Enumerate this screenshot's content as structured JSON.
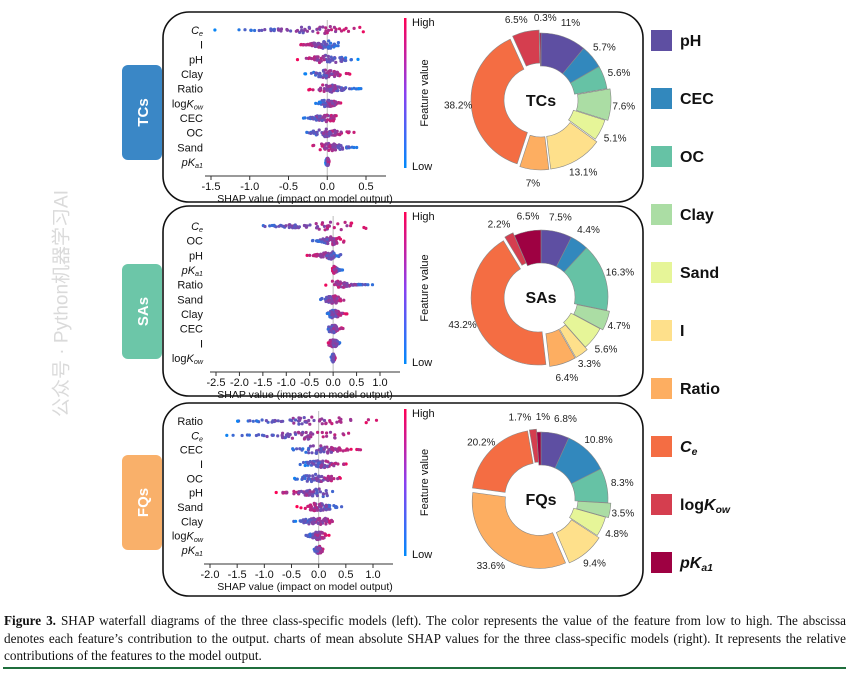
{
  "caption": {
    "label": "Figure 3.",
    "text": " SHAP waterfall diagrams of the three class-specific models (left). The color represents the value of the feature from low to high. The abscissa denotes each feature’s contribution to the output. charts of mean absolute SHAP values for the three class-specific models (right). It represents the relative contributions of the features to the model output."
  },
  "watermark": "公众号 · Python机器学习AI",
  "features": {
    "pH": {
      "pre": "pH",
      "ital": "",
      "sub": ""
    },
    "CEC": {
      "pre": "CEC",
      "ital": "",
      "sub": ""
    },
    "OC": {
      "pre": "OC",
      "ital": "",
      "sub": ""
    },
    "Clay": {
      "pre": "Clay",
      "ital": "",
      "sub": ""
    },
    "Sand": {
      "pre": "Sand",
      "ital": "",
      "sub": ""
    },
    "I": {
      "pre": "I",
      "ital": "",
      "sub": ""
    },
    "Ratio": {
      "pre": "Ratio",
      "ital": "",
      "sub": ""
    },
    "Ce": {
      "pre": "",
      "ital": "C",
      "sub": "e"
    },
    "logKow": {
      "pre": "log",
      "ital": "K",
      "sub": "ow"
    },
    "pKa1": {
      "pre": "",
      "ital": "pK",
      "sub": "a1"
    }
  },
  "legend": [
    {
      "key": "pH",
      "color": "#5e4fa2"
    },
    {
      "key": "CEC",
      "color": "#3288bd"
    },
    {
      "key": "OC",
      "color": "#66c2a5"
    },
    {
      "key": "Clay",
      "color": "#abdda4"
    },
    {
      "key": "Sand",
      "color": "#e6f598"
    },
    {
      "key": "I",
      "color": "#fee08b"
    },
    {
      "key": "Ratio",
      "color": "#fdae61"
    },
    {
      "key": "Ce",
      "color": "#f46d43"
    },
    {
      "key": "logKow",
      "color": "#d53e4f"
    },
    {
      "key": "pKa1",
      "color": "#9e0142"
    }
  ],
  "colorbar": {
    "high_label": "High",
    "low_label": "Low",
    "title": "Feature value",
    "low_color": "#008afb",
    "high_color": "#ff0052"
  },
  "chart_data": [
    {
      "type": "scatter",
      "subtype": "shap-beeswarm",
      "group": "TCs",
      "group_color": "#3a87c6",
      "xlabel": "SHAP value (impact on model output)",
      "xticks": [
        -1.5,
        -1.0,
        -0.5,
        0.0,
        0.5
      ],
      "xtick_labels": [
        "-1.5",
        "-1.0",
        "-0.5",
        "0.0",
        "0.5"
      ],
      "xlim": [
        -1.6,
        0.85
      ],
      "rows": [
        {
          "feature": "Ce",
          "range": [
            -1.45,
            0.75
          ],
          "high_value_direction": "positive"
        },
        {
          "feature": "I",
          "range": [
            -0.4,
            0.2
          ],
          "high_value_direction": "negative"
        },
        {
          "feature": "pH",
          "range": [
            -0.4,
            0.4
          ],
          "high_value_direction": "negative"
        },
        {
          "feature": "Clay",
          "range": [
            -0.3,
            0.3
          ],
          "high_value_direction": "positive"
        },
        {
          "feature": "Ratio",
          "range": [
            -0.3,
            0.45
          ],
          "high_value_direction": "negative"
        },
        {
          "feature": "logKow",
          "range": [
            -0.15,
            0.2
          ],
          "high_value_direction": "positive"
        },
        {
          "feature": "CEC",
          "range": [
            -0.35,
            0.2
          ],
          "high_value_direction": "positive"
        },
        {
          "feature": "OC",
          "range": [
            -0.35,
            0.35
          ],
          "high_value_direction": "positive"
        },
        {
          "feature": "Sand",
          "range": [
            -0.25,
            0.45
          ],
          "high_value_direction": "negative"
        },
        {
          "feature": "pKa1",
          "range": [
            -0.02,
            0.03
          ],
          "high_value_direction": "positive"
        }
      ]
    },
    {
      "type": "pie",
      "subtype": "donut",
      "center_label": "TCs",
      "categories": [
        "pH",
        "CEC",
        "OC",
        "Clay",
        "Sand",
        "I",
        "Ratio",
        "Ce",
        "logKow",
        "pKa1"
      ],
      "values": [
        11,
        5.7,
        5.6,
        7.6,
        5.1,
        13.1,
        7,
        38.2,
        6.5,
        0.3
      ],
      "labels": [
        "11%",
        "5.7%",
        "5.6%",
        "7.6%",
        "5.1%",
        "13.1%",
        "7%",
        "38.2%",
        "6.5%",
        "0.3%"
      ]
    },
    {
      "type": "scatter",
      "subtype": "shap-beeswarm",
      "group": "SAs",
      "group_color": "#6cc6a8",
      "xlabel": "SHAP value (impact on model output)",
      "xticks": [
        -2.5,
        -2.0,
        -1.5,
        -1.0,
        -0.5,
        0.0,
        0.5,
        1.0
      ],
      "xtick_labels": [
        "-2.5",
        "-2.0",
        "-1.5",
        "-1.0",
        "-0.5",
        "0.0",
        "0.5",
        "1.0"
      ],
      "xlim": [
        -2.7,
        1.2
      ],
      "rows": [
        {
          "feature": "Ce",
          "range": [
            -2.3,
            1.0
          ],
          "high_value_direction": "positive"
        },
        {
          "feature": "OC",
          "range": [
            -0.5,
            0.3
          ],
          "high_value_direction": "positive"
        },
        {
          "feature": "pH",
          "range": [
            -0.6,
            0.3
          ],
          "high_value_direction": "negative"
        },
        {
          "feature": "pKa1",
          "range": [
            -0.05,
            0.2
          ],
          "high_value_direction": "negative"
        },
        {
          "feature": "Ratio",
          "range": [
            -0.2,
            0.9
          ],
          "high_value_direction": "negative"
        },
        {
          "feature": "Sand",
          "range": [
            -0.4,
            0.3
          ],
          "high_value_direction": "positive"
        },
        {
          "feature": "Clay",
          "range": [
            -0.2,
            0.3
          ],
          "high_value_direction": "positive"
        },
        {
          "feature": "CEC",
          "range": [
            -0.2,
            0.25
          ],
          "high_value_direction": "positive"
        },
        {
          "feature": "I",
          "range": [
            -0.15,
            0.2
          ],
          "high_value_direction": "negative"
        },
        {
          "feature": "logKow",
          "range": [
            -0.05,
            0.05
          ],
          "high_value_direction": "positive"
        }
      ]
    },
    {
      "type": "pie",
      "subtype": "donut",
      "center_label": "SAs",
      "categories": [
        "pH",
        "CEC",
        "OC",
        "Clay",
        "Sand",
        "I",
        "Ratio",
        "Ce",
        "logKow",
        "pKa1"
      ],
      "values": [
        7.5,
        4.4,
        16.3,
        4.7,
        5.6,
        3.3,
        6.4,
        43.2,
        2.2,
        6.5
      ],
      "labels": [
        "7.5%",
        "4.4%",
        "16.3%",
        "4.7%",
        "5.6%",
        "3.3%",
        "6.4%",
        "43.2%",
        "2.2%",
        "6.5%"
      ]
    },
    {
      "type": "scatter",
      "subtype": "shap-beeswarm",
      "group": "FQs",
      "group_color": "#f9b06a",
      "xlabel": "SHAP value (impact on model output)",
      "xticks": [
        -2.0,
        -1.5,
        -1.0,
        -0.5,
        0.0,
        0.5,
        1.0
      ],
      "xtick_labels": [
        "-2.0",
        "-1.5",
        "-1.0",
        "-0.5",
        "0.0",
        "0.5",
        "1.0"
      ],
      "xlim": [
        -2.2,
        1.3
      ],
      "rows": [
        {
          "feature": "Ratio",
          "range": [
            -1.8,
            1.2
          ],
          "high_value_direction": "positive"
        },
        {
          "feature": "Ce",
          "range": [
            -1.9,
            1.0
          ],
          "high_value_direction": "positive"
        },
        {
          "feature": "CEC",
          "range": [
            -0.6,
            0.8
          ],
          "high_value_direction": "positive"
        },
        {
          "feature": "I",
          "range": [
            -0.4,
            0.6
          ],
          "high_value_direction": "positive"
        },
        {
          "feature": "OC",
          "range": [
            -0.6,
            0.6
          ],
          "high_value_direction": "positive"
        },
        {
          "feature": "pH",
          "range": [
            -0.9,
            0.5
          ],
          "high_value_direction": "negative"
        },
        {
          "feature": "Sand",
          "range": [
            -0.4,
            0.5
          ],
          "high_value_direction": "negative"
        },
        {
          "feature": "Clay",
          "range": [
            -0.5,
            0.4
          ],
          "high_value_direction": "positive"
        },
        {
          "feature": "logKow",
          "range": [
            -0.3,
            0.2
          ],
          "high_value_direction": "positive"
        },
        {
          "feature": "pKa1",
          "range": [
            -0.1,
            0.1
          ],
          "high_value_direction": "positive"
        }
      ]
    },
    {
      "type": "pie",
      "subtype": "donut",
      "center_label": "FQs",
      "categories": [
        "pH",
        "CEC",
        "OC",
        "Clay",
        "Sand",
        "I",
        "Ratio",
        "Ce",
        "logKow",
        "pKa1"
      ],
      "values": [
        6.8,
        10.8,
        8.3,
        3.5,
        4.8,
        9.4,
        33.6,
        20.2,
        1.7,
        1
      ],
      "labels": [
        "6.8%",
        "10.8%",
        "8.3%",
        "3.5%",
        "4.8%",
        "9.4%",
        "33.6%",
        "20.2%",
        "1.7%",
        "1%"
      ]
    }
  ]
}
